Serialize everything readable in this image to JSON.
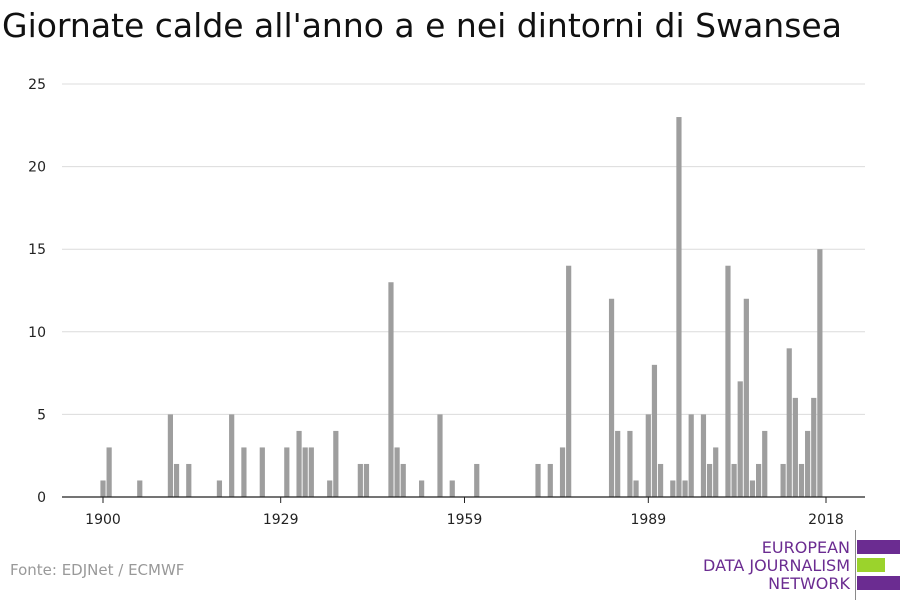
{
  "title": "Giornate calde all'anno a e nei dintorni di Swansea",
  "source": "Fonte: EDJNet / ECMWF",
  "logo": {
    "line1": "EUROPEAN",
    "line2": "DATA JOURNALISM",
    "line3": "NETWORK",
    "colors": {
      "purple": "#6b2c91",
      "green": "#9bd32c"
    }
  },
  "chart_data": {
    "type": "bar",
    "title": "Giornate calde all'anno a e nei dintorni di Swansea",
    "xlabel": "",
    "ylabel": "",
    "x_ticks": [
      1900,
      1929,
      1959,
      1989,
      2018
    ],
    "y_ticks": [
      0,
      5,
      10,
      15,
      20,
      25
    ],
    "ylim": [
      0,
      25
    ],
    "xlim": [
      1900,
      2018
    ],
    "grid": true,
    "bar_color": "#9e9e9e",
    "series": [
      {
        "years": [
          1900,
          1901,
          1906,
          1911,
          1912,
          1914,
          1919,
          1921,
          1923,
          1926,
          1930,
          1932,
          1933,
          1934,
          1937,
          1938,
          1942,
          1943,
          1947,
          1948,
          1949,
          1952,
          1955,
          1957,
          1961,
          1971,
          1973,
          1975,
          1976,
          1983,
          1984,
          1986,
          1987,
          1989,
          1990,
          1991,
          1993,
          1994,
          1995,
          1996,
          1998,
          1999,
          2000,
          2002,
          2003,
          2004,
          2005,
          2006,
          2007,
          2008,
          2011,
          2012,
          2013,
          2014,
          2015,
          2016,
          2017
        ],
        "values": [
          1,
          3,
          1,
          5,
          2,
          2,
          1,
          5,
          3,
          3,
          3,
          4,
          3,
          3,
          1,
          4,
          2,
          2,
          13,
          3,
          2,
          1,
          5,
          1,
          2,
          2,
          2,
          3,
          14,
          12,
          4,
          4,
          1,
          5,
          8,
          2,
          1,
          23,
          1,
          5,
          5,
          2,
          3,
          14,
          2,
          7,
          12,
          1,
          2,
          4,
          2,
          9,
          6,
          2,
          4,
          6,
          15
        ]
      }
    ]
  }
}
